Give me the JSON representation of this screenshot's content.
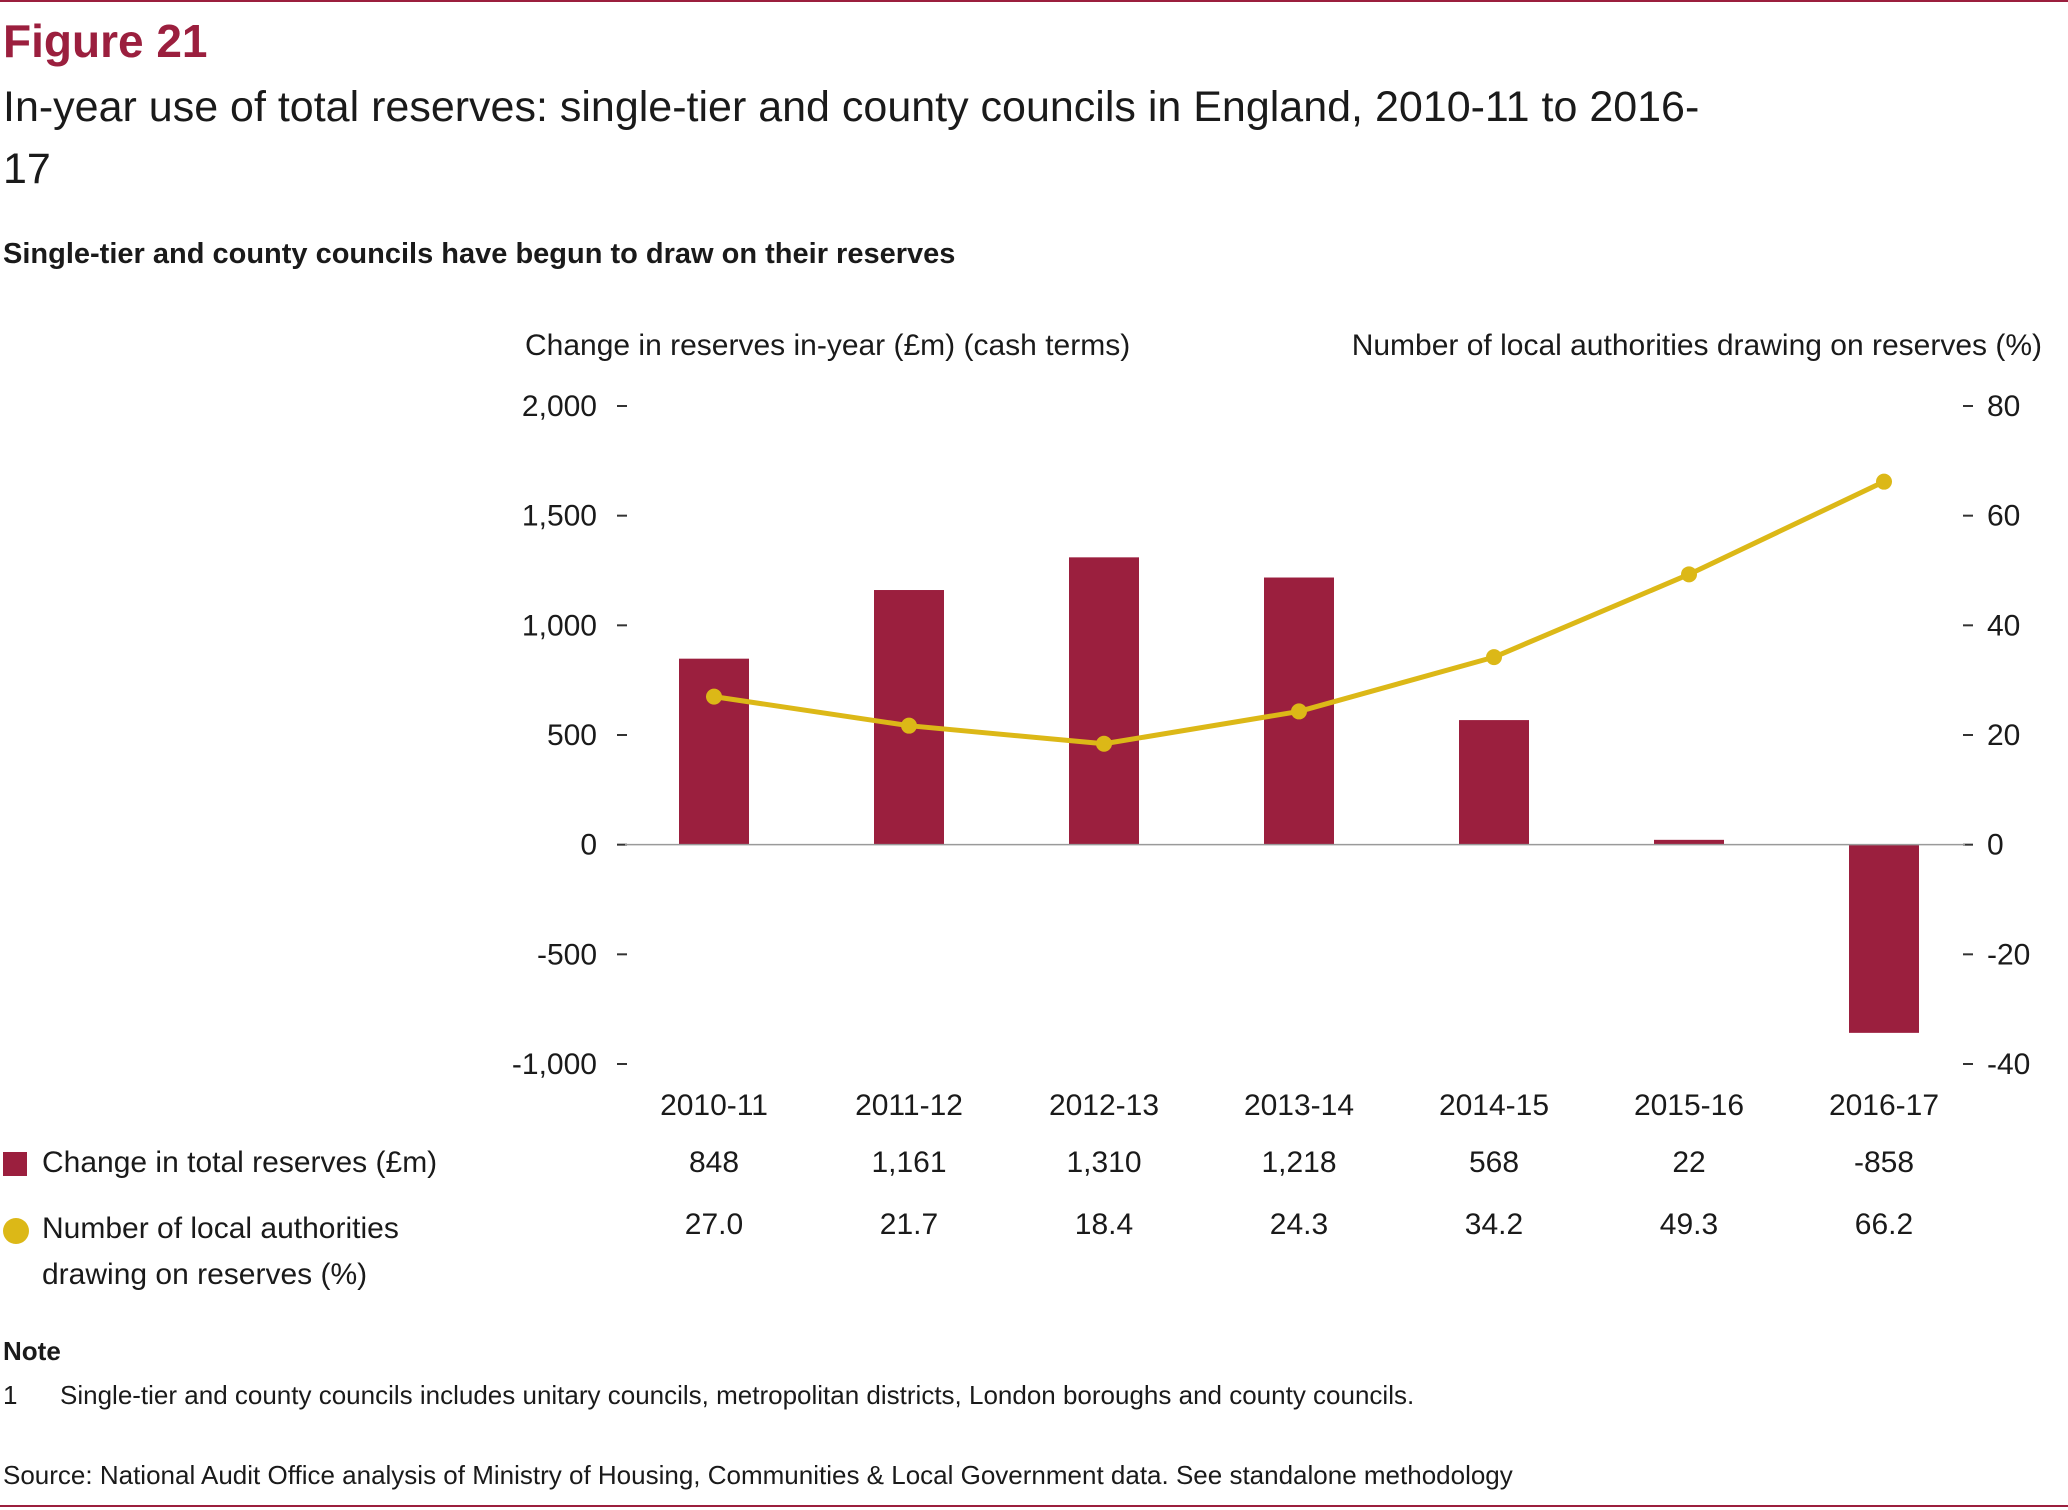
{
  "figure": {
    "label": "Figure 21",
    "title": "In-year use of total reserves: single-tier and county councils in England, 2010-11 to 2016-17",
    "subtitle": "Single-tier and county councils have begun to draw on their reserves"
  },
  "colors": {
    "bar": "#9b1f3e",
    "line": "#dcb817",
    "rule": "#9b1f3e",
    "text": "#1a1a1a"
  },
  "chart_data": {
    "type": "bar",
    "categories": [
      "2010-11",
      "2011-12",
      "2012-13",
      "2013-14",
      "2014-15",
      "2015-16",
      "2016-17"
    ],
    "left_axis": {
      "title": "Change in reserves in-year (£m) (cash terms)",
      "ylim": [
        -1000,
        2000
      ],
      "ticks": [
        2000,
        1500,
        1000,
        500,
        0,
        -500,
        -1000
      ],
      "tick_labels": [
        "2,000",
        "1,500",
        "1,000",
        "500",
        "0",
        "-500",
        "-1,000"
      ]
    },
    "right_axis": {
      "title": "Number of local authorities drawing on reserves (%)",
      "ylim": [
        -40,
        80
      ],
      "ticks": [
        80,
        60,
        40,
        20,
        0,
        -20,
        -40
      ],
      "tick_labels": [
        "80",
        "60",
        "40",
        "20",
        "0",
        "-20",
        "-40"
      ]
    },
    "series": [
      {
        "name": "Change in total reserves (£m)",
        "type": "bar",
        "axis": "left",
        "values": [
          848,
          1161,
          1310,
          1218,
          568,
          22,
          -858
        ],
        "labels": [
          "848",
          "1,161",
          "1,310",
          "1,218",
          "568",
          "22",
          "-858"
        ]
      },
      {
        "name": "Number of local authorities drawing on reserves (%)",
        "type": "line",
        "axis": "right",
        "values": [
          27.0,
          21.7,
          18.4,
          24.3,
          34.2,
          49.3,
          66.2
        ],
        "labels": [
          "27.0",
          "21.7",
          "18.4",
          "24.3",
          "34.2",
          "49.3",
          "66.2"
        ]
      }
    ],
    "grid": false
  },
  "note": {
    "heading": "Note",
    "number": "1",
    "text": "Single-tier and county councils includes unitary councils, metropolitan districts, London boroughs and county councils."
  },
  "source": "Source: National Audit Office analysis of Ministry of Housing, Communities & Local Government data. See standalone methodology"
}
